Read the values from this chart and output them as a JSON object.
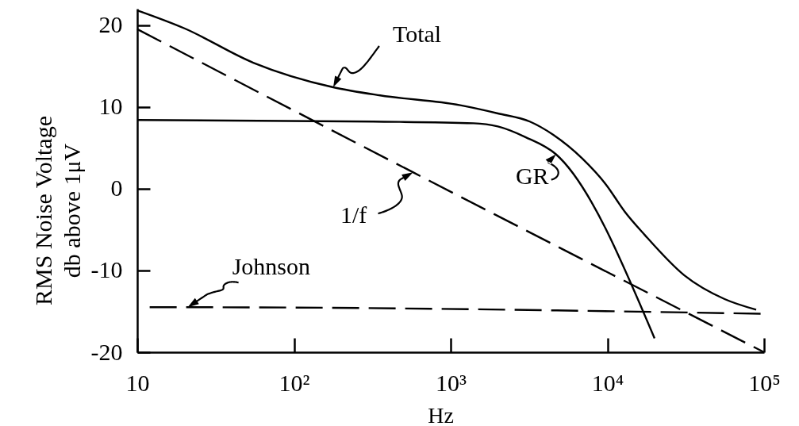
{
  "chart_data": {
    "type": "line",
    "xlabel": "Hz",
    "ylabel": "RMS Noise Voltage\ndb above 1μV",
    "log": "x",
    "xlim": [
      10,
      100000
    ],
    "xticks": [
      10,
      {
        "value": 100,
        "label": "10²"
      },
      {
        "value": 1000,
        "label": "10³"
      },
      {
        "value": 10000,
        "label": "10⁴"
      },
      {
        "value": 100000,
        "label": "10⁵"
      }
    ],
    "ylim": [
      -20,
      22
    ],
    "yticks": [
      -20,
      -10,
      0,
      10,
      20
    ],
    "series": [
      {
        "name": "Total",
        "color": "#000000",
        "line_style": "solid",
        "x": [
          10,
          20,
          55,
          178,
          355,
          1150,
          2000,
          3200,
          4500,
          6900,
          9800,
          12900,
          17400,
          31000,
          56000,
          89000
        ],
        "values": [
          21.8,
          19.6,
          15.4,
          12.4,
          11.4,
          10.2,
          9.2,
          8.2,
          6.6,
          3.7,
          0.5,
          -2.8,
          -5.7,
          -10.6,
          -13.5,
          -14.8
        ]
      },
      {
        "name": "GR",
        "color": "#000000",
        "line_style": "solid",
        "x": [
          10,
          320,
          1400,
          2000,
          3000,
          4700,
          20000
        ],
        "values": [
          8.4,
          8.2,
          8.0,
          7.6,
          6.3,
          4.2,
          -18.3
        ]
      },
      {
        "name": "1/f",
        "color": "#000000",
        "line_style": "dashed",
        "x": [
          10,
          575,
          100000
        ],
        "values": [
          19.5,
          2.0,
          -20
        ]
      },
      {
        "name": "Johnson",
        "color": "#000000",
        "line_style": "dashed",
        "x": [
          12,
          21,
          100000
        ],
        "values": [
          -14.5,
          -14.5,
          -15.3
        ]
      }
    ]
  }
}
